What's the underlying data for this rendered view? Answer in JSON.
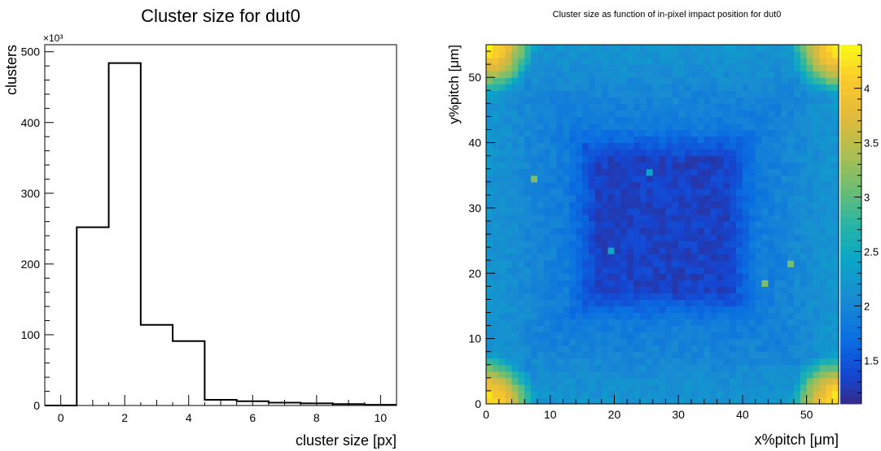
{
  "chart_data": [
    {
      "type": "bar",
      "title": "Cluster size for dut0",
      "xlabel": "cluster size [px]",
      "ylabel": "clusters",
      "y_multiplier_label": "×10³",
      "xlim": [
        -0.5,
        10.5
      ],
      "ylim": [
        0,
        510
      ],
      "x_ticks": [
        0,
        2,
        4,
        6,
        8,
        10
      ],
      "y_ticks": [
        0,
        100,
        200,
        300,
        400,
        500
      ],
      "bin_width": 1,
      "bins": [
        0,
        1,
        2,
        3,
        4,
        5,
        6,
        7,
        8,
        9,
        10
      ],
      "values": [
        0,
        252,
        484,
        114,
        91,
        8,
        6,
        4,
        3,
        2,
        1
      ],
      "grid": false
    },
    {
      "type": "heatmap",
      "title": "Cluster size as function of in-pixel impact position for dut0",
      "xlabel": "x%pitch [μm]",
      "ylabel": "y%pitch [μm]",
      "xlim": [
        0,
        55
      ],
      "ylim": [
        0,
        55
      ],
      "x_ticks": [
        0,
        10,
        20,
        30,
        40,
        50
      ],
      "y_ticks": [
        0,
        10,
        20,
        30,
        40,
        50
      ],
      "bins": [
        55,
        55
      ],
      "z_range": [
        1.1,
        4.4
      ],
      "colorbar_ticks": [
        1.5,
        2,
        2.5,
        3,
        3.5,
        4
      ],
      "colormap": "parula",
      "model": "center ≈ 1.3, edges ≈ 2.1, corners ≈ 4.3"
    }
  ]
}
